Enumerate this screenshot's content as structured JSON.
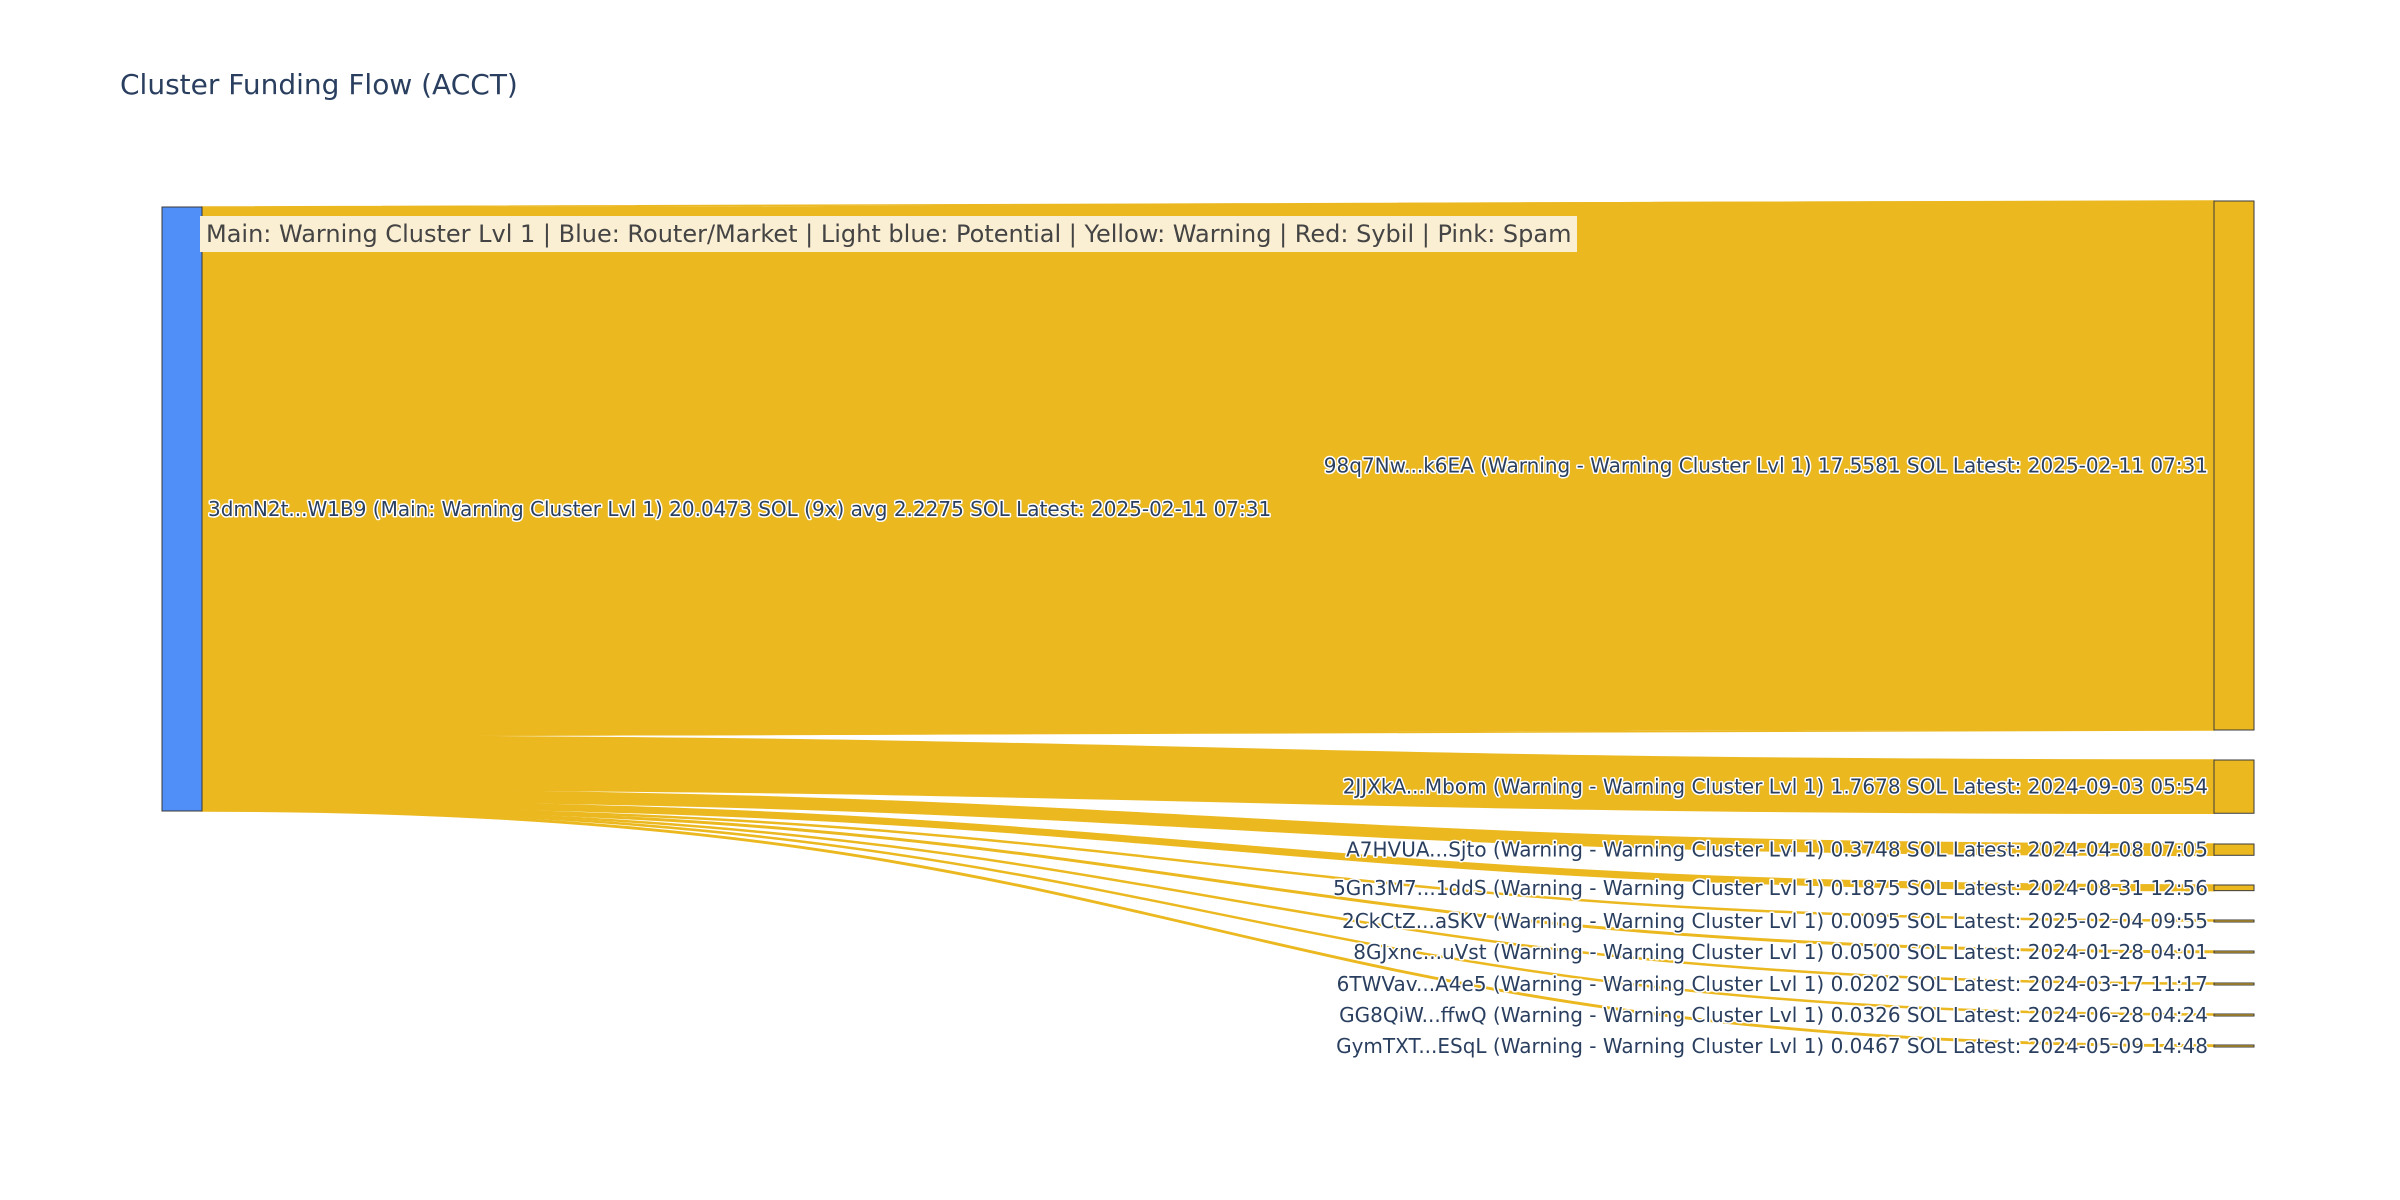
{
  "title": "Cluster Funding Flow (ACCT)",
  "legend_text": "Main: Warning Cluster Lvl 1  |  Blue: Router/Market | Light blue: Potential | Yellow: Warning | Red: Sybil | Pink: Spam",
  "colors": {
    "source_node": "#4f8ff7",
    "target_node": "#ebb820",
    "link": "#ebb820",
    "node_border": "#3a3a3a",
    "label_text": "#2a3f5f",
    "legend_background": "#fbefd3"
  },
  "chart_data": {
    "type": "sankey",
    "title": "Cluster Funding Flow (ACCT)",
    "unit": "SOL",
    "source": {
      "label": "3dmN2t...W1B9 (Main: Warning Cluster Lvl 1) 20.0473 SOL (9x) avg 2.2275 SOL Latest: 2025-02-11 07:31",
      "value": 20.0473
    },
    "targets": [
      {
        "label": "98q7Nw...k6EA (Warning - Warning Cluster Lvl 1) 17.5581 SOL Latest: 2025-02-11 07:31",
        "value": 17.5581
      },
      {
        "label": "2JJXkA...Mbom (Warning - Warning Cluster Lvl 1) 1.7678 SOL Latest: 2024-09-03 05:54",
        "value": 1.7678
      },
      {
        "label": "A7HVUA...Sjto (Warning - Warning Cluster Lvl 1) 0.3748 SOL Latest: 2024-04-08 07:05",
        "value": 0.3748
      },
      {
        "label": "5Gn3M7...1ddS (Warning - Warning Cluster Lvl 1) 0.1875 SOL Latest: 2024-08-31 12:56",
        "value": 0.1875
      },
      {
        "label": "2CkCtZ...aSKV (Warning - Warning Cluster Lvl 1) 0.0095 SOL Latest: 2025-02-04 09:55",
        "value": 0.0095
      },
      {
        "label": "8GJxnc...uVst (Warning - Warning Cluster Lvl 1) 0.0500 SOL Latest: 2024-01-28 04:01",
        "value": 0.05
      },
      {
        "label": "6TWVav...A4e5 (Warning - Warning Cluster Lvl 1) 0.0202 SOL Latest: 2024-03-17 11:17",
        "value": 0.0202
      },
      {
        "label": "GG8QiW...ffwQ (Warning - Warning Cluster Lvl 1) 0.0326 SOL Latest: 2024-06-28 04:24",
        "value": 0.0326
      },
      {
        "label": "GymTXT...ESqL (Warning - Warning Cluster Lvl 1) 0.0467 SOL Latest: 2024-05-09 14:48",
        "value": 0.0467
      }
    ]
  }
}
